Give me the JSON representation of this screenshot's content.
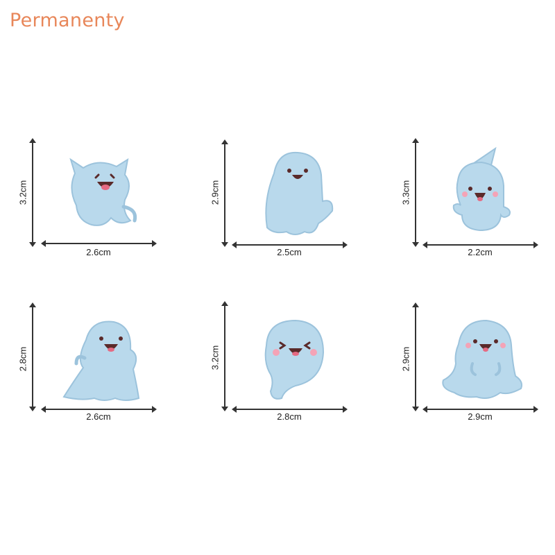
{
  "brand": {
    "name": "Permanenty",
    "color": "#e8875a"
  },
  "figures": [
    {
      "height": "3.2cm",
      "width": "2.6cm",
      "icon": "ghost-horned-icon"
    },
    {
      "height": "2.9cm",
      "width": "2.5cm",
      "icon": "ghost-sheet-icon"
    },
    {
      "height": "3.3cm",
      "width": "2.2cm",
      "icon": "ghost-hat-icon"
    },
    {
      "height": "2.8cm",
      "width": "2.6cm",
      "icon": "ghost-waving-icon"
    },
    {
      "height": "3.2cm",
      "width": "2.8cm",
      "icon": "ghost-tail-icon"
    },
    {
      "height": "2.9cm",
      "width": "2.9cm",
      "icon": "ghost-round-icon"
    }
  ],
  "colors": {
    "ghost": "#b9d9ec",
    "ghost_shade": "#9cc3dc",
    "mouth": "#5a2a2a",
    "tongue": "#e56b83",
    "cheek": "#f4a3b6"
  }
}
